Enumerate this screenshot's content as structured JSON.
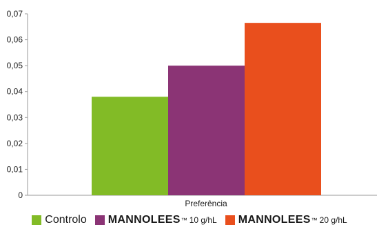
{
  "chart_data": {
    "type": "bar",
    "categories": [
      "Preferência"
    ],
    "xlabel": "Preferência",
    "ylabel": "",
    "ylim": [
      0,
      0.07
    ],
    "yticks": [
      "0",
      "0,01",
      "0,02",
      "0,03",
      "0,04",
      "0,05",
      "0,06",
      "0,07"
    ],
    "grid": false,
    "legend_position": "bottom",
    "series": [
      {
        "name": "Controlo",
        "values": [
          0.038
        ],
        "color": "#82bb26"
      },
      {
        "name": "MANNOLEES™ 10 g/hL",
        "values": [
          0.05
        ],
        "color": "#8b3475"
      },
      {
        "name": "MANNOLEES™ 20 g/hL",
        "values": [
          0.0665
        ],
        "color": "#e94f1d"
      }
    ]
  },
  "legend": {
    "items": [
      {
        "name": "Controlo",
        "brand": "",
        "tm": "",
        "suffix": "",
        "color": "#82bb26"
      },
      {
        "name": "",
        "brand": "MANNOLEES",
        "tm": "™",
        "suffix": "10 g/hL",
        "color": "#8b3475"
      },
      {
        "name": "",
        "brand": "MANNOLEES",
        "tm": "™",
        "suffix": "20 g/hL",
        "color": "#e94f1d"
      }
    ]
  }
}
